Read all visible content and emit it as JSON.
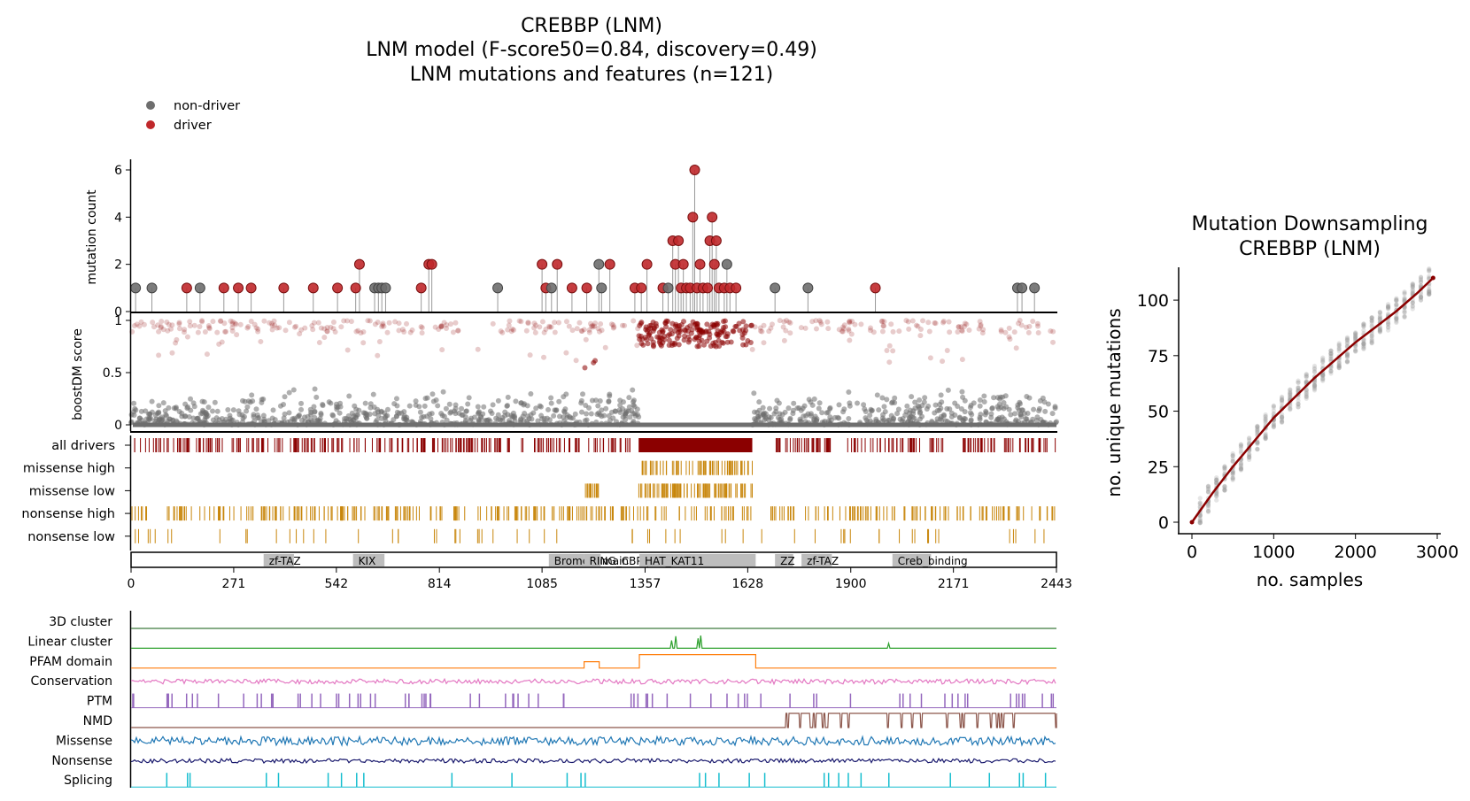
{
  "titles": {
    "main_line1": "CREBBP (LNM)",
    "main_line2": "LNM model (F-score50=0.84, discovery=0.49)",
    "main_line3": "LNM mutations and features (n=121)",
    "side_line1": "Mutation Downsampling",
    "side_line2": "CREBBP (LNM)"
  },
  "legend": [
    {
      "label": "non-driver",
      "color": "#6e6e6e"
    },
    {
      "label": "driver",
      "color": "#c0282b"
    }
  ],
  "colors": {
    "driver": "#8b0000",
    "nondriver": "#6e6e6e",
    "band": "#c8860b",
    "domain_fill": "#bdbdbd"
  },
  "chart_data": [
    {
      "type": "scatter",
      "name": "lollipop",
      "ylabel": "mutation count",
      "xlim": [
        0,
        2443
      ],
      "ylim": [
        0,
        6
      ],
      "yticks": [
        "0",
        "2",
        "4",
        "6"
      ],
      "points": [
        {
          "x": 12,
          "count": 1,
          "driver": false
        },
        {
          "x": 55,
          "count": 1,
          "driver": false
        },
        {
          "x": 147,
          "count": 1,
          "driver": true
        },
        {
          "x": 182,
          "count": 1,
          "driver": false
        },
        {
          "x": 245,
          "count": 1,
          "driver": true
        },
        {
          "x": 283,
          "count": 1,
          "driver": true
        },
        {
          "x": 317,
          "count": 1,
          "driver": true
        },
        {
          "x": 403,
          "count": 1,
          "driver": true
        },
        {
          "x": 481,
          "count": 1,
          "driver": true
        },
        {
          "x": 545,
          "count": 1,
          "driver": true
        },
        {
          "x": 593,
          "count": 1,
          "driver": true
        },
        {
          "x": 603,
          "count": 2,
          "driver": true
        },
        {
          "x": 643,
          "count": 1,
          "driver": false
        },
        {
          "x": 653,
          "count": 1,
          "driver": false
        },
        {
          "x": 662,
          "count": 1,
          "driver": false
        },
        {
          "x": 672,
          "count": 1,
          "driver": false
        },
        {
          "x": 766,
          "count": 1,
          "driver": true
        },
        {
          "x": 786,
          "count": 2,
          "driver": true
        },
        {
          "x": 794,
          "count": 2,
          "driver": true
        },
        {
          "x": 968,
          "count": 1,
          "driver": false
        },
        {
          "x": 1085,
          "count": 2,
          "driver": true
        },
        {
          "x": 1095,
          "count": 1,
          "driver": true
        },
        {
          "x": 1110,
          "count": 1,
          "driver": false
        },
        {
          "x": 1125,
          "count": 2,
          "driver": true
        },
        {
          "x": 1164,
          "count": 1,
          "driver": true
        },
        {
          "x": 1203,
          "count": 1,
          "driver": true
        },
        {
          "x": 1235,
          "count": 2,
          "driver": false
        },
        {
          "x": 1242,
          "count": 1,
          "driver": false
        },
        {
          "x": 1264,
          "count": 2,
          "driver": true
        },
        {
          "x": 1330,
          "count": 1,
          "driver": true
        },
        {
          "x": 1347,
          "count": 1,
          "driver": true
        },
        {
          "x": 1362,
          "count": 2,
          "driver": true
        },
        {
          "x": 1404,
          "count": 1,
          "driver": true
        },
        {
          "x": 1418,
          "count": 1,
          "driver": false
        },
        {
          "x": 1430,
          "count": 3,
          "driver": true
        },
        {
          "x": 1437,
          "count": 2,
          "driver": true
        },
        {
          "x": 1445,
          "count": 3,
          "driver": true
        },
        {
          "x": 1452,
          "count": 1,
          "driver": true
        },
        {
          "x": 1458,
          "count": 2,
          "driver": true
        },
        {
          "x": 1466,
          "count": 1,
          "driver": true
        },
        {
          "x": 1476,
          "count": 1,
          "driver": true
        },
        {
          "x": 1483,
          "count": 4,
          "driver": true
        },
        {
          "x": 1488,
          "count": 6,
          "driver": true
        },
        {
          "x": 1494,
          "count": 1,
          "driver": true
        },
        {
          "x": 1502,
          "count": 2,
          "driver": true
        },
        {
          "x": 1510,
          "count": 1,
          "driver": true
        },
        {
          "x": 1522,
          "count": 1,
          "driver": true
        },
        {
          "x": 1528,
          "count": 3,
          "driver": true
        },
        {
          "x": 1534,
          "count": 4,
          "driver": true
        },
        {
          "x": 1540,
          "count": 2,
          "driver": true
        },
        {
          "x": 1545,
          "count": 3,
          "driver": true
        },
        {
          "x": 1552,
          "count": 1,
          "driver": true
        },
        {
          "x": 1566,
          "count": 1,
          "driver": true
        },
        {
          "x": 1573,
          "count": 2,
          "driver": false
        },
        {
          "x": 1581,
          "count": 1,
          "driver": true
        },
        {
          "x": 1597,
          "count": 1,
          "driver": true
        },
        {
          "x": 1700,
          "count": 1,
          "driver": false
        },
        {
          "x": 1787,
          "count": 1,
          "driver": false
        },
        {
          "x": 1965,
          "count": 1,
          "driver": true
        },
        {
          "x": 2340,
          "count": 1,
          "driver": false
        },
        {
          "x": 2352,
          "count": 1,
          "driver": false
        },
        {
          "x": 2385,
          "count": 1,
          "driver": false
        }
      ]
    },
    {
      "type": "scatter",
      "name": "boostDM score by position",
      "ylabel": "boostDM score",
      "ylim": [
        0,
        1
      ],
      "yticks": [
        "0",
        "0.5",
        "1"
      ],
      "driver_threshold": 0.5,
      "high_score_region": [
        1340,
        1640
      ],
      "mid_score_region": [
        1190,
        1240
      ]
    },
    {
      "type": "table",
      "name": "mutation tracks",
      "tracks": [
        {
          "label": "all drivers",
          "color": "#8b0000",
          "density": 0.55,
          "regions": [
            [
              0,
              1330
            ],
            [
              1700,
              2443
            ]
          ],
          "solid": [
            [
              1340,
              1640
            ]
          ]
        },
        {
          "label": "missense high",
          "color": "#c8860b",
          "density": 0.7,
          "regions": [
            [
              1340,
              1640
            ]
          ]
        },
        {
          "label": "missense low",
          "color": "#c8860b",
          "density": 0.9,
          "regions": [
            [
              1195,
              1240
            ],
            [
              1340,
              1640
            ]
          ]
        },
        {
          "label": "nonsense high",
          "color": "#c8860b",
          "density": 0.45,
          "regions": [
            [
              0,
              1640
            ],
            [
              1680,
              2443
            ]
          ]
        },
        {
          "label": "nonsense low",
          "color": "#c8860b",
          "density": 0.08,
          "regions": [
            [
              0,
              2443
            ]
          ]
        }
      ]
    },
    {
      "type": "table",
      "name": "protein domains",
      "domains": [
        {
          "name": "zf-TAZ",
          "start": 350,
          "end": 430
        },
        {
          "name": "KIX",
          "start": 586,
          "end": 669
        },
        {
          "name": "Bromodomain",
          "start": 1103,
          "end": 1196
        },
        {
          "name": "RING_CBP-p300",
          "start": 1196,
          "end": 1240
        },
        {
          "name": "HAT_KAT11",
          "start": 1342,
          "end": 1649
        },
        {
          "name": "ZZ",
          "start": 1700,
          "end": 1748
        },
        {
          "name": "zf-TAZ",
          "start": 1770,
          "end": 1850
        },
        {
          "name": "Creb_binding",
          "start": 2010,
          "end": 2112
        }
      ],
      "xticks": [
        0,
        271,
        542,
        814,
        1085,
        1357,
        1628,
        1900,
        2171,
        2443
      ]
    },
    {
      "type": "line",
      "name": "features",
      "series": [
        {
          "label": "3D cluster",
          "color": "#3d7a3d",
          "kind": "flat"
        },
        {
          "label": "Linear cluster",
          "color": "#2ca02c",
          "kind": "peaks",
          "peaks": [
            [
              1427,
              0.55
            ],
            [
              1438,
              0.85
            ],
            [
              1497,
              0.7
            ],
            [
              1504,
              0.9
            ],
            [
              2000,
              0.35
            ]
          ]
        },
        {
          "label": "PFAM domain",
          "color": "#ff7f0e",
          "kind": "steps",
          "steps": [
            [
              1196,
              1236,
              0.45
            ],
            [
              1342,
              1649,
              0.95
            ]
          ]
        },
        {
          "label": "Conservation",
          "color": "#e377c2",
          "kind": "noise",
          "amp": 0.35
        },
        {
          "label": "PTM",
          "color": "#9467bd",
          "kind": "spikes",
          "count": 80
        },
        {
          "label": "NMD",
          "color": "#8c564b",
          "kind": "nmd",
          "start": 1725,
          "end": 2443
        },
        {
          "label": "Missense",
          "color": "#1f77b4",
          "kind": "noise",
          "amp": 0.6
        },
        {
          "label": "Nonsense",
          "color": "#1a1a6e",
          "kind": "noise",
          "amp": 0.3
        },
        {
          "label": "Splicing",
          "color": "#17becf",
          "kind": "spikes",
          "count": 30
        }
      ]
    },
    {
      "type": "scatter",
      "name": "Mutation Downsampling",
      "title": "Mutation Downsampling\nCREBBP (LNM)",
      "xlabel": "no. samples",
      "ylabel": "no. unique mutations",
      "xlim": [
        0,
        3000
      ],
      "ylim": [
        0,
        110
      ],
      "xticks": [
        "0",
        "1000",
        "2000",
        "3000"
      ],
      "yticks": [
        "0",
        "25",
        "50",
        "75",
        "100"
      ],
      "fit_line": [
        [
          0,
          0
        ],
        [
          250,
          13
        ],
        [
          500,
          25
        ],
        [
          750,
          36
        ],
        [
          1000,
          47
        ],
        [
          1250,
          56
        ],
        [
          1500,
          65
        ],
        [
          1750,
          73
        ],
        [
          2000,
          81
        ],
        [
          2250,
          88
        ],
        [
          2500,
          95
        ],
        [
          2750,
          103
        ],
        [
          2950,
          110
        ]
      ],
      "line_color": "#8b0000"
    }
  ]
}
